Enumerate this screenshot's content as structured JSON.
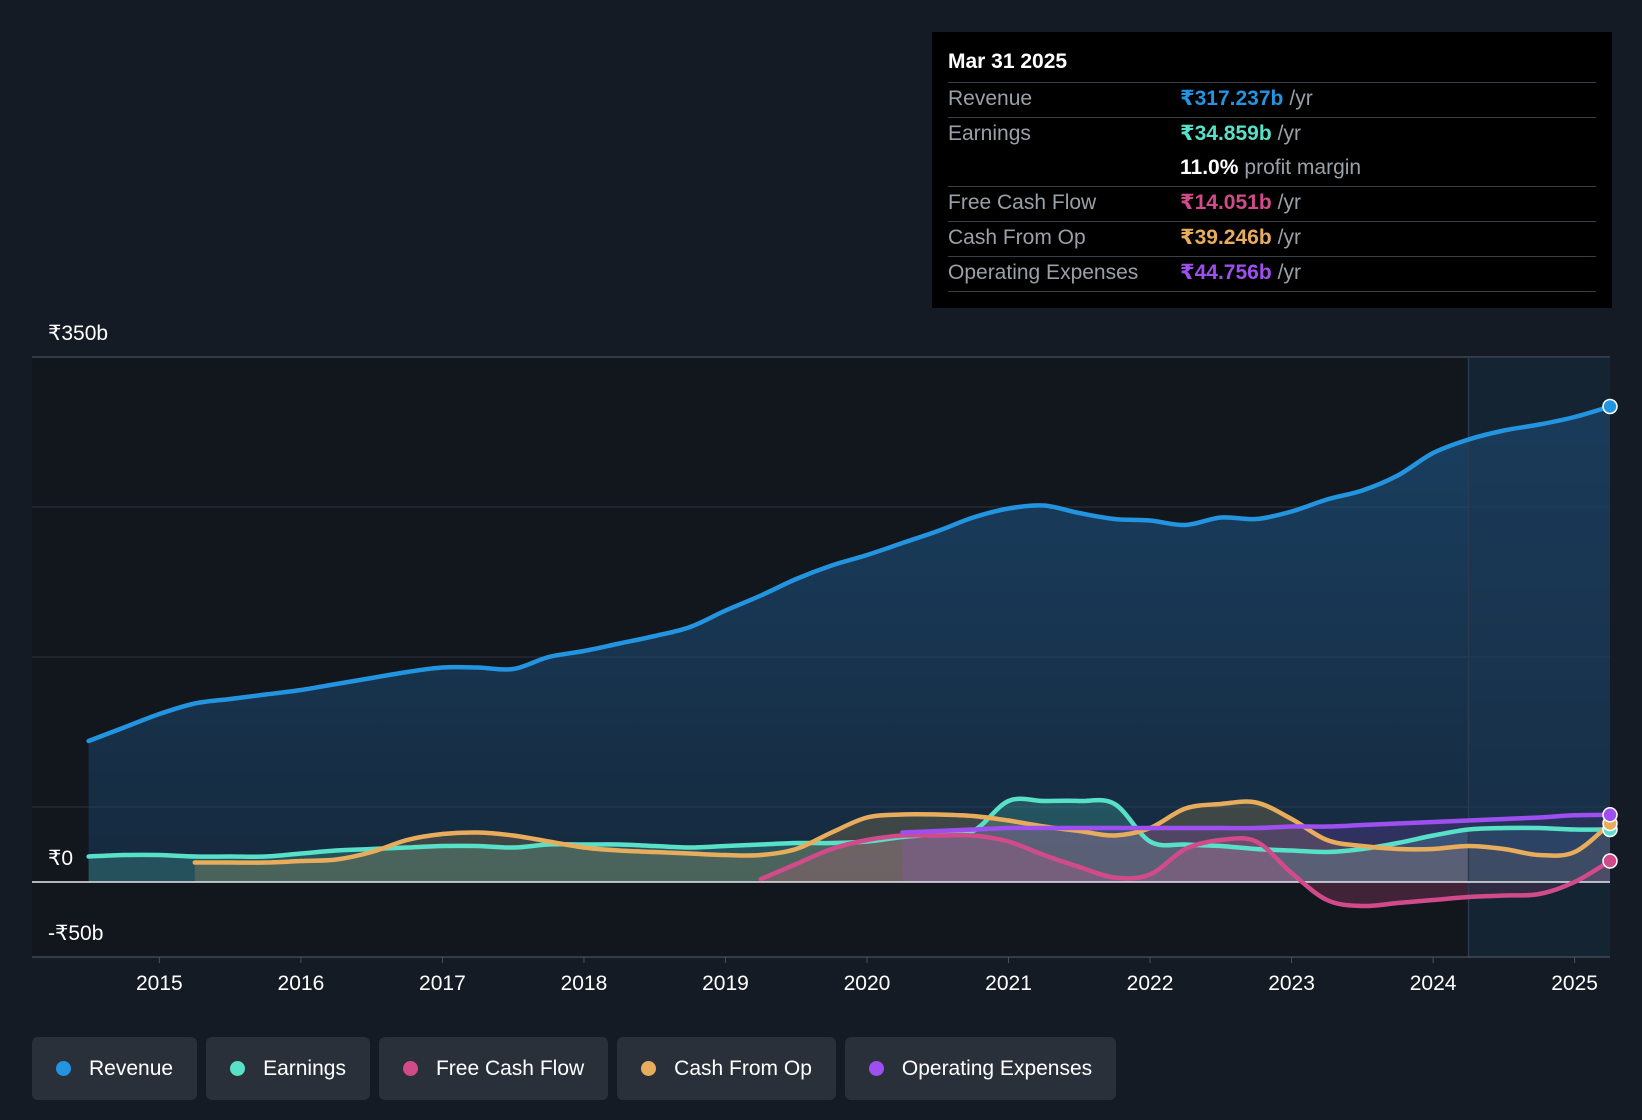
{
  "tooltip": {
    "date": "Mar 31 2025",
    "rows": [
      {
        "label": "Revenue",
        "value": "₹317.237b",
        "unit": "/yr"
      },
      {
        "label": "Earnings",
        "value": "₹34.859b",
        "unit": "/yr"
      },
      {
        "label": "",
        "value": "11.0%",
        "unit": "profit margin"
      },
      {
        "label": "Free Cash Flow",
        "value": "₹14.051b",
        "unit": "/yr"
      },
      {
        "label": "Cash From Op",
        "value": "₹39.246b",
        "unit": "/yr"
      },
      {
        "label": "Operating Expenses",
        "value": "₹44.756b",
        "unit": "/yr"
      }
    ]
  },
  "legend": [
    {
      "label": "Revenue",
      "color": "#2394df"
    },
    {
      "label": "Earnings",
      "color": "#58e0c8"
    },
    {
      "label": "Free Cash Flow",
      "color": "#d14b8a"
    },
    {
      "label": "Cash From Op",
      "color": "#e8ad5c"
    },
    {
      "label": "Operating Expenses",
      "color": "#9e4ff0"
    }
  ],
  "chart_data": {
    "type": "line",
    "title": "",
    "xlabel": "",
    "ylabel": "",
    "ylim": [
      -50,
      350
    ],
    "y_tick_labels": [
      "₹350b",
      "₹0",
      "-₹50b"
    ],
    "x_tick_labels": [
      "2015",
      "2016",
      "2017",
      "2018",
      "2019",
      "2020",
      "2021",
      "2022",
      "2023",
      "2024",
      "2025"
    ],
    "x_ticks": [
      2015,
      2016,
      2017,
      2018,
      2019,
      2020,
      2021,
      2022,
      2023,
      2024,
      2025
    ],
    "xlim": [
      2014.1,
      2025.25
    ],
    "forecast_start": 2024.25,
    "series": [
      {
        "name": "Revenue",
        "color": "#2394df",
        "x": [
          2014.5,
          2014.75,
          2015.0,
          2015.25,
          2015.5,
          2015.75,
          2016.0,
          2016.25,
          2016.5,
          2016.75,
          2017.0,
          2017.25,
          2017.5,
          2017.75,
          2018.0,
          2018.25,
          2018.5,
          2018.75,
          2019.0,
          2019.25,
          2019.5,
          2019.75,
          2020.0,
          2020.25,
          2020.5,
          2020.75,
          2021.0,
          2021.25,
          2021.5,
          2021.75,
          2022.0,
          2022.25,
          2022.5,
          2022.75,
          2023.0,
          2023.25,
          2023.5,
          2023.75,
          2024.0,
          2024.25,
          2024.5,
          2024.75,
          2025.0,
          2025.25
        ],
        "y": [
          94,
          103,
          112,
          119,
          122,
          125,
          128,
          132,
          136,
          140,
          143,
          143,
          142,
          150,
          154,
          159,
          164,
          170,
          181,
          191,
          202,
          211,
          218,
          226,
          234,
          243,
          249,
          251,
          246,
          242,
          241,
          238,
          243,
          242,
          247,
          255,
          261,
          271,
          286,
          295,
          301,
          305,
          310,
          317
        ]
      },
      {
        "name": "Earnings",
        "color": "#58e0c8",
        "x": [
          2014.5,
          2014.75,
          2015.0,
          2015.25,
          2015.5,
          2015.75,
          2016.0,
          2016.25,
          2016.5,
          2016.75,
          2017.0,
          2017.25,
          2017.5,
          2017.75,
          2018.0,
          2018.25,
          2018.5,
          2018.75,
          2019.0,
          2019.25,
          2019.5,
          2019.75,
          2020.0,
          2020.25,
          2020.5,
          2020.75,
          2021.0,
          2021.25,
          2021.5,
          2021.75,
          2022.0,
          2022.25,
          2022.5,
          2022.75,
          2023.0,
          2023.25,
          2023.5,
          2023.75,
          2024.0,
          2024.25,
          2024.5,
          2024.75,
          2025.0,
          2025.25
        ],
        "y": [
          17,
          18,
          18,
          17,
          17,
          17,
          19,
          21,
          22,
          23,
          24,
          24,
          23,
          25,
          25,
          25,
          24,
          23,
          24,
          25,
          26,
          26,
          27,
          30,
          32,
          34,
          54,
          54,
          54,
          52,
          27,
          25,
          24,
          22,
          21,
          20,
          22,
          26,
          31,
          35,
          36,
          36,
          35,
          35
        ]
      },
      {
        "name": "Free Cash Flow",
        "color": "#d14b8a",
        "x": [
          2019.25,
          2019.5,
          2019.75,
          2020.0,
          2020.25,
          2020.5,
          2020.75,
          2021.0,
          2021.25,
          2021.5,
          2021.75,
          2022.0,
          2022.25,
          2022.5,
          2022.75,
          2023.0,
          2023.25,
          2023.5,
          2023.75,
          2024.0,
          2024.25,
          2024.5,
          2024.75,
          2025.0,
          2025.25
        ],
        "y": [
          2,
          12,
          22,
          28,
          31,
          31,
          31,
          27,
          18,
          10,
          3,
          5,
          22,
          28,
          27,
          6,
          -12,
          -16,
          -14,
          -12,
          -10,
          -9,
          -8,
          0,
          14
        ]
      },
      {
        "name": "Cash From Op",
        "color": "#e8ad5c",
        "x": [
          2015.25,
          2015.5,
          2015.75,
          2016.0,
          2016.25,
          2016.5,
          2016.75,
          2017.0,
          2017.25,
          2017.5,
          2017.75,
          2018.0,
          2018.25,
          2018.5,
          2018.75,
          2019.0,
          2019.25,
          2019.5,
          2019.75,
          2020.0,
          2020.25,
          2020.5,
          2020.75,
          2021.0,
          2021.25,
          2021.5,
          2021.75,
          2022.0,
          2022.25,
          2022.5,
          2022.75,
          2023.0,
          2023.25,
          2023.5,
          2023.75,
          2024.0,
          2024.25,
          2024.5,
          2024.75,
          2025.0,
          2025.25
        ],
        "y": [
          13,
          13,
          13,
          14,
          15,
          20,
          28,
          32,
          33,
          31,
          27,
          23,
          21,
          20,
          19,
          18,
          18,
          22,
          33,
          43,
          45,
          45,
          44,
          41,
          37,
          34,
          31,
          36,
          49,
          52,
          53,
          42,
          28,
          24,
          22,
          22,
          24,
          22,
          18,
          20,
          39
        ]
      },
      {
        "name": "Operating Expenses",
        "color": "#9e4ff0",
        "x": [
          2020.25,
          2020.5,
          2020.75,
          2021.0,
          2021.25,
          2021.5,
          2021.75,
          2022.0,
          2022.25,
          2022.5,
          2022.75,
          2023.0,
          2023.25,
          2023.5,
          2023.75,
          2024.0,
          2024.25,
          2024.5,
          2024.75,
          2025.0,
          2025.25
        ],
        "y": [
          33,
          34,
          35,
          36,
          36,
          36,
          36,
          36,
          36,
          36,
          36,
          37,
          37,
          38,
          39,
          40,
          41,
          42,
          43,
          44.5,
          44.8
        ]
      }
    ]
  }
}
